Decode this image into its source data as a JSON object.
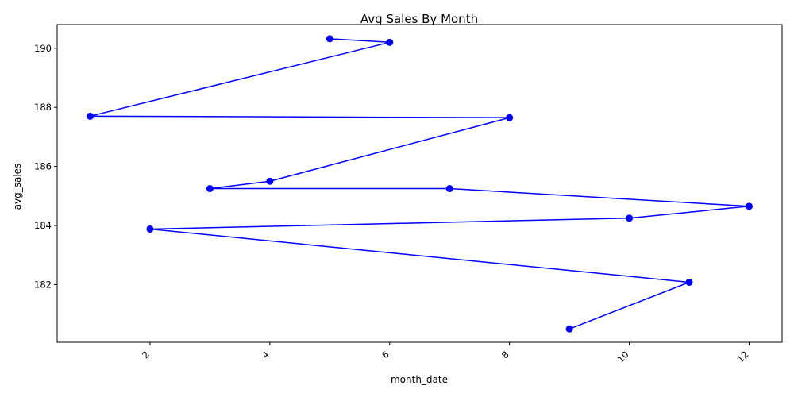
{
  "chart_data": {
    "type": "line",
    "title": "Avg Sales By Month",
    "xlabel": "month_date",
    "ylabel": "avg_sales",
    "xlim": [
      0.45,
      12.55
    ],
    "ylim": [
      180.05,
      190.8
    ],
    "x_ticks": [
      2,
      4,
      6,
      8,
      10,
      12
    ],
    "y_ticks": [
      182,
      184,
      186,
      188,
      190
    ],
    "x_tick_rotation": "45deg",
    "grid": false,
    "legend": "none",
    "line_color": "#0000ff",
    "marker_color": "#0000ff",
    "series": [
      {
        "x": [
          5,
          6,
          1,
          8,
          4,
          3,
          7,
          12,
          10,
          2,
          11,
          9
        ],
        "values": [
          190.32,
          190.2,
          187.7,
          187.65,
          185.5,
          185.25,
          185.25,
          184.65,
          184.25,
          183.88,
          182.08,
          180.5
        ]
      }
    ]
  }
}
